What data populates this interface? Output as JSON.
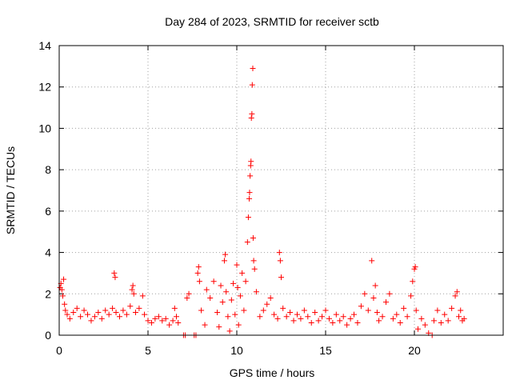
{
  "chart_data": {
    "type": "scatter",
    "title": "Day 284 of 2023, SRMTID for receiver sctb",
    "xlabel": "GPS time / hours",
    "ylabel": "SRMTID / TECUs",
    "xlim": [
      0,
      25
    ],
    "ylim": [
      0,
      14
    ],
    "xticks": [
      0,
      5,
      10,
      15,
      20
    ],
    "xtick_labels": [
      "0",
      "5",
      "10",
      "15",
      "20"
    ],
    "yticks": [
      0,
      2,
      4,
      6,
      8,
      10,
      12,
      14
    ],
    "ytick_labels": [
      "0",
      "2",
      "4",
      "6",
      "8",
      "10",
      "12",
      "14"
    ],
    "grid": true,
    "marker": "+",
    "color": "#ff0000",
    "series": [
      {
        "name": "SRMTID",
        "points": [
          [
            0.05,
            2.3
          ],
          [
            0.1,
            2.5
          ],
          [
            0.15,
            2.2
          ],
          [
            0.2,
            1.9
          ],
          [
            0.25,
            2.7
          ],
          [
            0.3,
            1.5
          ],
          [
            0.35,
            1.2
          ],
          [
            0.45,
            1.0
          ],
          [
            0.6,
            0.8
          ],
          [
            0.8,
            1.1
          ],
          [
            1.0,
            1.3
          ],
          [
            1.2,
            0.9
          ],
          [
            1.4,
            1.2
          ],
          [
            1.6,
            1.0
          ],
          [
            1.8,
            0.7
          ],
          [
            2.0,
            0.9
          ],
          [
            2.2,
            1.1
          ],
          [
            2.4,
            0.8
          ],
          [
            2.6,
            1.2
          ],
          [
            2.8,
            1.0
          ],
          [
            3.0,
            1.3
          ],
          [
            3.1,
            3.0
          ],
          [
            3.15,
            2.8
          ],
          [
            3.2,
            1.1
          ],
          [
            3.4,
            0.9
          ],
          [
            3.6,
            1.2
          ],
          [
            3.8,
            1.0
          ],
          [
            4.0,
            1.4
          ],
          [
            4.1,
            2.2
          ],
          [
            4.15,
            2.4
          ],
          [
            4.2,
            2.0
          ],
          [
            4.3,
            1.1
          ],
          [
            4.5,
            1.3
          ],
          [
            4.7,
            1.9
          ],
          [
            4.8,
            1.0
          ],
          [
            5.0,
            0.7
          ],
          [
            5.2,
            0.6
          ],
          [
            5.4,
            0.8
          ],
          [
            5.6,
            0.9
          ],
          [
            5.8,
            0.7
          ],
          [
            6.0,
            0.8
          ],
          [
            6.2,
            0.5
          ],
          [
            6.4,
            0.7
          ],
          [
            6.5,
            1.3
          ],
          [
            6.6,
            0.9
          ],
          [
            6.7,
            0.6
          ],
          [
            7.0,
            0.0
          ],
          [
            7.1,
            0.0
          ],
          [
            7.2,
            1.8
          ],
          [
            7.3,
            2.0
          ],
          [
            7.6,
            0.0
          ],
          [
            7.7,
            0.0
          ],
          [
            7.8,
            3.0
          ],
          [
            7.85,
            3.3
          ],
          [
            7.9,
            2.6
          ],
          [
            8.0,
            1.2
          ],
          [
            8.2,
            0.5
          ],
          [
            8.3,
            2.2
          ],
          [
            8.5,
            1.8
          ],
          [
            8.7,
            2.6
          ],
          [
            8.9,
            1.1
          ],
          [
            9.0,
            0.4
          ],
          [
            9.1,
            2.4
          ],
          [
            9.2,
            1.6
          ],
          [
            9.3,
            3.6
          ],
          [
            9.35,
            3.9
          ],
          [
            9.4,
            2.1
          ],
          [
            9.5,
            0.9
          ],
          [
            9.6,
            0.2
          ],
          [
            9.7,
            1.7
          ],
          [
            9.8,
            2.5
          ],
          [
            9.9,
            1.0
          ],
          [
            10.0,
            3.4
          ],
          [
            10.05,
            2.3
          ],
          [
            10.1,
            0.5
          ],
          [
            10.2,
            1.9
          ],
          [
            10.3,
            3.0
          ],
          [
            10.4,
            1.2
          ],
          [
            10.5,
            2.6
          ],
          [
            10.6,
            4.5
          ],
          [
            10.65,
            5.7
          ],
          [
            10.7,
            6.6
          ],
          [
            10.72,
            6.9
          ],
          [
            10.75,
            7.7
          ],
          [
            10.78,
            8.2
          ],
          [
            10.8,
            8.4
          ],
          [
            10.82,
            10.5
          ],
          [
            10.85,
            10.7
          ],
          [
            10.87,
            12.1
          ],
          [
            10.9,
            12.9
          ],
          [
            10.92,
            4.7
          ],
          [
            10.95,
            3.6
          ],
          [
            11.0,
            3.2
          ],
          [
            11.1,
            2.1
          ],
          [
            11.3,
            0.9
          ],
          [
            11.5,
            1.2
          ],
          [
            11.7,
            1.5
          ],
          [
            11.9,
            1.8
          ],
          [
            12.1,
            1.0
          ],
          [
            12.3,
            0.8
          ],
          [
            12.4,
            4.0
          ],
          [
            12.45,
            3.6
          ],
          [
            12.5,
            2.8
          ],
          [
            12.6,
            1.3
          ],
          [
            12.8,
            0.9
          ],
          [
            13.0,
            1.1
          ],
          [
            13.2,
            0.7
          ],
          [
            13.4,
            1.0
          ],
          [
            13.6,
            0.8
          ],
          [
            13.8,
            1.2
          ],
          [
            14.0,
            0.9
          ],
          [
            14.2,
            0.6
          ],
          [
            14.4,
            1.1
          ],
          [
            14.6,
            0.7
          ],
          [
            14.8,
            0.9
          ],
          [
            15.0,
            1.2
          ],
          [
            15.2,
            0.8
          ],
          [
            15.4,
            0.6
          ],
          [
            15.6,
            1.0
          ],
          [
            15.8,
            0.7
          ],
          [
            16.0,
            0.9
          ],
          [
            16.2,
            0.5
          ],
          [
            16.4,
            0.8
          ],
          [
            16.6,
            1.0
          ],
          [
            16.8,
            0.6
          ],
          [
            17.0,
            1.4
          ],
          [
            17.2,
            2.0
          ],
          [
            17.4,
            1.2
          ],
          [
            17.6,
            3.6
          ],
          [
            17.7,
            1.8
          ],
          [
            17.8,
            2.4
          ],
          [
            17.9,
            1.1
          ],
          [
            18.0,
            0.7
          ],
          [
            18.2,
            0.9
          ],
          [
            18.4,
            1.6
          ],
          [
            18.6,
            2.0
          ],
          [
            18.8,
            0.8
          ],
          [
            19.0,
            1.0
          ],
          [
            19.2,
            0.6
          ],
          [
            19.4,
            1.3
          ],
          [
            19.6,
            0.9
          ],
          [
            19.8,
            1.9
          ],
          [
            19.9,
            2.6
          ],
          [
            20.0,
            3.2
          ],
          [
            20.05,
            3.3
          ],
          [
            20.1,
            1.2
          ],
          [
            20.2,
            0.3
          ],
          [
            20.4,
            0.8
          ],
          [
            20.6,
            0.5
          ],
          [
            20.8,
            0.1
          ],
          [
            21.0,
            0.0
          ],
          [
            21.1,
            0.7
          ],
          [
            21.3,
            1.2
          ],
          [
            21.5,
            0.6
          ],
          [
            21.7,
            1.0
          ],
          [
            21.9,
            0.7
          ],
          [
            22.1,
            1.3
          ],
          [
            22.3,
            1.9
          ],
          [
            22.4,
            2.1
          ],
          [
            22.5,
            0.9
          ],
          [
            22.6,
            1.2
          ],
          [
            22.7,
            0.7
          ],
          [
            22.8,
            0.8
          ]
        ]
      }
    ]
  }
}
